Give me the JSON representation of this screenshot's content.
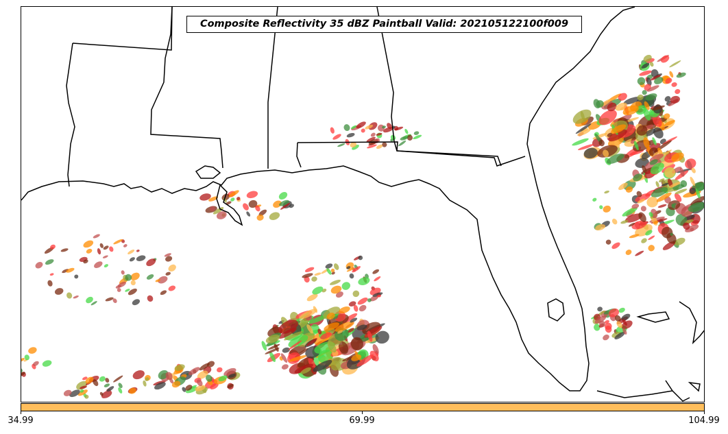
{
  "title": "Composite Reflectivity 35 dBZ Paintball Valid: 202105122100f009",
  "colorbar": {
    "color": "#ffbe5c",
    "ticks": [
      "34.99",
      "69.99",
      "104.99"
    ]
  },
  "palette": {
    "red": "#ff3b3b",
    "darkred": "#b01818",
    "orange": "#ff8c00",
    "lightorange": "#ffb84d",
    "green": "#45d945",
    "darkgreen": "#3f8f3f",
    "olive": "#a3a83a",
    "darkgray": "#3a3a3a",
    "brown": "#7a2a10",
    "rose": "#c25050"
  },
  "icons": {
    "state_boundaries": "line",
    "coastline": "line",
    "precip_blobs": "ellipse"
  }
}
